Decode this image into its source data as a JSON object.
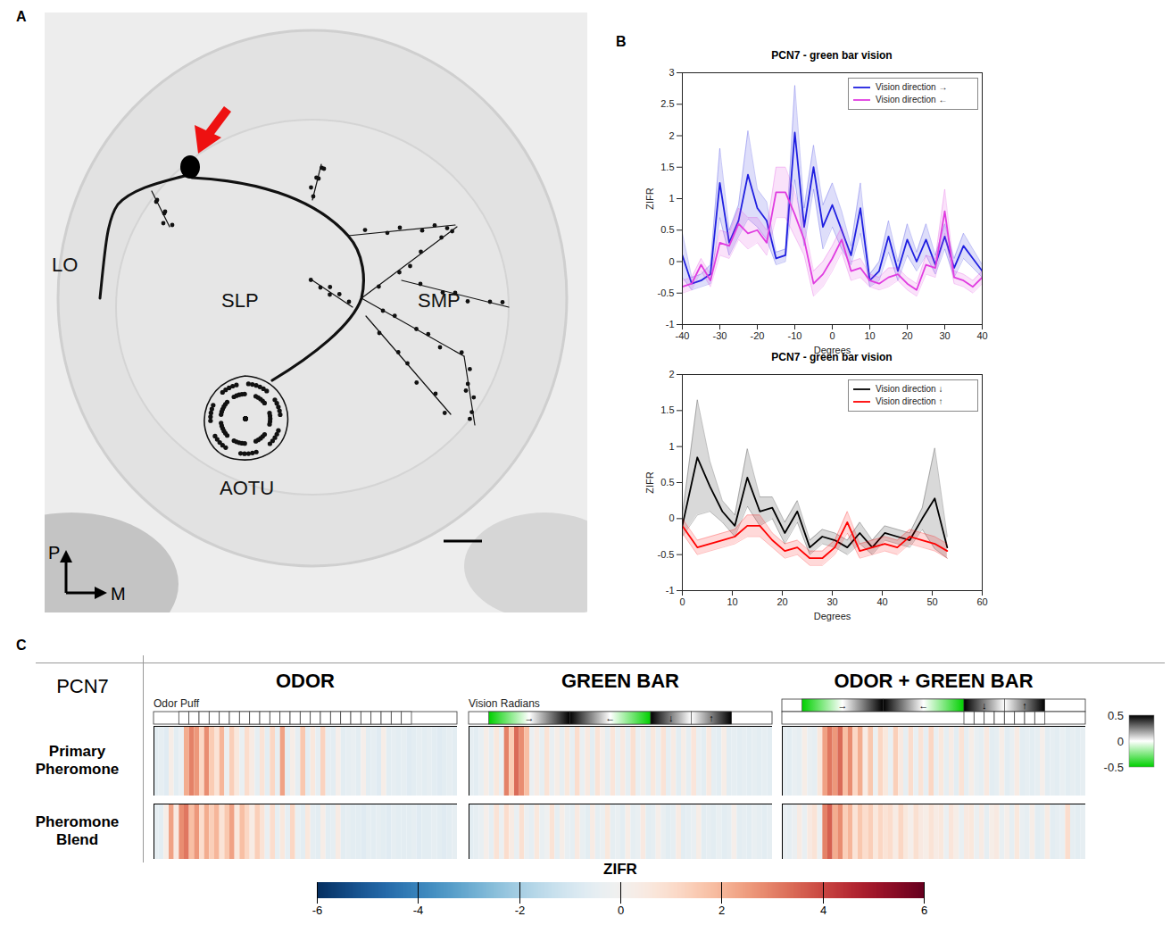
{
  "panel_letters": [
    "A",
    "B",
    "C"
  ],
  "panel_a": {
    "region_labels": [
      "LO",
      "SLP",
      "SMP",
      "AOTU"
    ],
    "orientation": {
      "up": "P",
      "right": "M"
    }
  },
  "chart_data": [
    {
      "type": "line",
      "title": "PCN7 - green bar vision",
      "xlabel": "Degrees",
      "ylabel": "ZIFR",
      "x": [
        -40,
        -37.5,
        -35,
        -32.5,
        -30,
        -27.5,
        -25,
        -22.5,
        -20,
        -17.5,
        -15,
        -12.5,
        -10,
        -7.5,
        -5,
        -2.5,
        0,
        2.5,
        5,
        7.5,
        10,
        12.5,
        15,
        17.5,
        20,
        22.5,
        25,
        27.5,
        30,
        32.5,
        35,
        37.5,
        40
      ],
      "series": [
        {
          "name": "Vision direction →",
          "color": "#1f1fe0",
          "values": [
            0.1,
            -0.35,
            -0.3,
            -0.2,
            1.25,
            0.3,
            0.65,
            1.38,
            0.85,
            0.65,
            0.05,
            0.1,
            2.05,
            0.55,
            1.5,
            0.55,
            0.9,
            0.5,
            0.1,
            0.85,
            -0.3,
            -0.15,
            0.4,
            -0.15,
            0.35,
            0,
            0.35,
            -0.05,
            0.4,
            -0.1,
            0.25,
            0.05,
            -0.15
          ],
          "error": [
            0.35,
            0.1,
            0.1,
            0.15,
            0.55,
            0.2,
            0.25,
            0.7,
            0.3,
            0.3,
            0.1,
            0.1,
            0.75,
            0.3,
            0.35,
            0.35,
            0.35,
            0.3,
            0.15,
            0.4,
            0.1,
            0.15,
            0.25,
            0.15,
            0.25,
            0.15,
            0.25,
            0.15,
            0.2,
            0.15,
            0.2,
            0.15,
            0.1
          ]
        },
        {
          "name": "Vision direction ←",
          "color": "#e03ce0",
          "values": [
            -0.4,
            -0.35,
            -0.05,
            -0.3,
            0.3,
            0.25,
            0.6,
            0.45,
            0.5,
            0.3,
            1.1,
            1.1,
            0.75,
            0.35,
            -0.35,
            -0.2,
            0.05,
            0.35,
            -0.15,
            -0.1,
            -0.3,
            -0.35,
            -0.25,
            -0.2,
            -0.35,
            -0.45,
            -0.05,
            -0.1,
            0.8,
            -0.25,
            -0.3,
            -0.4,
            -0.25
          ],
          "error": [
            0.1,
            0.1,
            0.1,
            0.1,
            0.2,
            0.2,
            0.25,
            0.25,
            0.2,
            0.2,
            0.4,
            0.4,
            0.35,
            0.25,
            0.2,
            0.2,
            0.2,
            0.2,
            0.15,
            0.15,
            0.1,
            0.1,
            0.15,
            0.1,
            0.1,
            0.1,
            0.15,
            0.15,
            0.35,
            0.1,
            0.1,
            0.1,
            0.1
          ]
        }
      ],
      "xlim": [
        -40,
        40
      ],
      "xticks": [
        -40,
        -30,
        -20,
        -10,
        0,
        10,
        20,
        30,
        40
      ],
      "ylim": [
        -1,
        3
      ],
      "yticks": [
        -1,
        -0.5,
        0,
        0.5,
        1,
        1.5,
        2,
        2.5,
        3
      ],
      "legend": "top-right"
    },
    {
      "type": "line",
      "title": "PCN7 - green bar vision",
      "xlabel": "Degrees",
      "ylabel": "ZIFR",
      "x": [
        0,
        3,
        5.5,
        8,
        10.5,
        13,
        15.5,
        18,
        20.5,
        23,
        25.5,
        28,
        30.5,
        33,
        35.5,
        38,
        40.5,
        43,
        45.5,
        48,
        50.5,
        53
      ],
      "series": [
        {
          "name": "Vision direction ↓",
          "color": "#000000",
          "values": [
            -0.1,
            0.85,
            0.45,
            0.1,
            -0.1,
            0.57,
            0.1,
            0.15,
            -0.2,
            0.1,
            -0.4,
            -0.25,
            -0.3,
            -0.4,
            -0.2,
            -0.4,
            -0.2,
            -0.25,
            -0.3,
            0,
            0.28,
            -0.4
          ],
          "error": [
            0.15,
            0.8,
            0.35,
            0.15,
            0.15,
            0.4,
            0.2,
            0.15,
            0.15,
            0.15,
            0.1,
            0.1,
            0.1,
            0.1,
            0.15,
            0.1,
            0.1,
            0.1,
            0.1,
            0.15,
            0.7,
            0.15
          ]
        },
        {
          "name": "Vision direction ↑",
          "color": "#ff0000",
          "values": [
            -0.1,
            -0.4,
            -0.35,
            -0.3,
            -0.25,
            -0.1,
            -0.1,
            -0.3,
            -0.45,
            -0.4,
            -0.55,
            -0.55,
            -0.4,
            -0.05,
            -0.45,
            -0.4,
            -0.35,
            -0.4,
            -0.25,
            -0.3,
            -0.35,
            -0.45
          ],
          "error": [
            0.1,
            0.1,
            0.1,
            0.1,
            0.1,
            0.15,
            0.15,
            0.1,
            0.1,
            0.1,
            0.1,
            0.1,
            0.1,
            0.15,
            0.1,
            0.1,
            0.1,
            0.1,
            0.1,
            0.1,
            0.1,
            0.1
          ]
        }
      ],
      "xlim": [
        0,
        60
      ],
      "xticks": [
        0,
        10,
        20,
        30,
        40,
        50,
        60
      ],
      "ylim": [
        -1,
        2
      ],
      "yticks": [
        -1,
        -0.5,
        0,
        0.5,
        1,
        1.5,
        2
      ],
      "legend": "top-right"
    }
  ],
  "panel_c": {
    "neuron": "PCN7",
    "rows": [
      "Primary Pheromone",
      "Pheromone Blend"
    ],
    "columns": [
      {
        "title": "ODOR",
        "stimulus_label": "Odor Puff",
        "odor_puffs": [
          5,
          7,
          9,
          11,
          13,
          15,
          17,
          19,
          21,
          23,
          25,
          27,
          29,
          31,
          33,
          35,
          37,
          39,
          41,
          43,
          45,
          47,
          49
        ],
        "cells": [
          [
            -0.6,
            -0.5,
            -0.7,
            0.3,
            -0.6,
            -0.4,
            2.2,
            3.0,
            2.6,
            1.2,
            2.8,
            1.5,
            0.8,
            2.0,
            -0.3,
            1.4,
            0.6,
            -0.4,
            1.0,
            0.4,
            -0.5,
            0.8,
            -0.6,
            1.2,
            -0.5,
            2.4,
            -0.6,
            0.3,
            -0.5,
            1.6,
            -0.6,
            0.6,
            -0.5,
            1.3,
            -0.5,
            -0.6,
            0.2,
            -0.6,
            -0.5,
            -0.4,
            -0.6,
            0.2,
            -0.6,
            -0.5,
            -0.7,
            0.3,
            -0.6,
            -0.5,
            -0.6,
            -0.5,
            -0.7,
            -0.6,
            -0.5,
            -0.6,
            -0.5,
            -0.6,
            -0.7,
            -0.6,
            -0.5,
            -0.6
          ],
          [
            -0.5,
            -0.6,
            0.3,
            2.4,
            0.5,
            2.8,
            3.2,
            1.8,
            2.6,
            1.0,
            2.2,
            1.4,
            2.0,
            0.8,
            1.6,
            2.4,
            0.6,
            1.8,
            1.2,
            0.4,
            1.4,
            0.8,
            -0.4,
            1.0,
            -0.5,
            0.6,
            -0.5,
            1.2,
            -0.4,
            -0.6,
            0.6,
            -0.5,
            -0.6,
            0.3,
            -0.6,
            -0.5,
            0.4,
            -0.6,
            -0.5,
            -0.6,
            -0.6,
            -0.7,
            -0.5,
            -0.6,
            -0.5,
            -0.6,
            -0.7,
            -0.5,
            -0.6,
            -0.6,
            -0.6,
            -0.5,
            -0.7,
            -0.6,
            -0.6,
            -0.5,
            -0.6,
            -0.7,
            -0.6,
            -0.5
          ]
        ]
      },
      {
        "title": "GREEN BAR",
        "stimulus_label": "Vision Radians",
        "vision": [
          {
            "label": "→",
            "start": 4,
            "end": 20,
            "from": -0.5,
            "to": 0.5
          },
          {
            "label": "←",
            "start": 20,
            "end": 36,
            "from": 0.5,
            "to": -0.5
          },
          {
            "label": "↓",
            "start": 36,
            "end": 44,
            "from": 0.5,
            "to": 0
          },
          {
            "label": "↑",
            "start": 44,
            "end": 52,
            "from": 0,
            "to": 0.5
          }
        ],
        "cells": [
          [
            -0.5,
            -0.6,
            -0.4,
            0.3,
            -0.5,
            0.6,
            -0.4,
            3.0,
            1.5,
            3.4,
            2.8,
            1.8,
            -0.3,
            0.4,
            -0.5,
            0.8,
            -0.4,
            0.3,
            -0.5,
            0.6,
            -0.5,
            1.0,
            -0.4,
            0.5,
            -0.6,
            0.8,
            0.2,
            -0.5,
            0.7,
            -0.4,
            0.5,
            -0.5,
            0.9,
            -0.4,
            0.3,
            -0.5,
            0.6,
            -0.4,
            0.8,
            -0.5,
            0.4,
            -0.6,
            0.3,
            -0.5,
            0.7,
            -0.4,
            -0.6,
            0.5,
            -0.5,
            -0.6,
            0.3,
            -0.6,
            -0.5,
            -0.6,
            -0.5,
            -0.6,
            -0.5,
            -0.6,
            -0.5,
            -0.6
          ],
          [
            -0.6,
            -0.5,
            -0.4,
            0.2,
            -0.5,
            0.8,
            -0.3,
            1.0,
            0.4,
            -0.4,
            0.9,
            -0.3,
            -0.5,
            0.6,
            -0.4,
            -0.2,
            0.8,
            -0.5,
            0.3,
            -0.4,
            -0.5,
            0.5,
            -0.4,
            -0.6,
            0.4,
            -0.5,
            -0.3,
            0.6,
            -0.5,
            -0.4,
            -0.6,
            0.3,
            -0.5,
            -0.4,
            0.5,
            -0.6,
            -0.5,
            0.2,
            -0.4,
            -0.6,
            -0.5,
            0.4,
            -0.6,
            -0.5,
            -0.4,
            0.3,
            -0.6,
            -0.5,
            -0.6,
            -0.4,
            -0.6,
            -0.5,
            0.2,
            -0.6,
            -0.5,
            -0.6,
            -0.4,
            -0.5,
            -0.6,
            -0.5
          ]
        ]
      },
      {
        "title": "ODOR + GREEN BAR",
        "vision": [
          {
            "label": "→",
            "start": 4,
            "end": 20,
            "from": -0.5,
            "to": 0.5
          },
          {
            "label": "←",
            "start": 20,
            "end": 36,
            "from": 0.5,
            "to": -0.5
          },
          {
            "label": "↓",
            "start": 36,
            "end": 44,
            "from": 0.5,
            "to": 0
          },
          {
            "label": "↑",
            "start": 44,
            "end": 52,
            "from": 0,
            "to": 0.5
          }
        ],
        "odor_puffs": [
          36,
          38,
          40,
          42,
          44,
          46,
          48,
          50
        ],
        "cells": [
          [
            -0.5,
            -0.6,
            -0.4,
            -0.5,
            0.3,
            -0.4,
            -0.5,
            0.6,
            2.4,
            3.2,
            2.6,
            3.4,
            1.8,
            2.8,
            1.2,
            2.2,
            0.4,
            1.6,
            -0.3,
            1.2,
            0.6,
            -0.4,
            1.4,
            0.5,
            -0.5,
            1.0,
            -0.4,
            0.8,
            -0.5,
            1.2,
            -0.4,
            0.6,
            -0.5,
            0.4,
            -0.6,
            0.8,
            -0.5,
            0.3,
            -0.4,
            -0.5,
            0.5,
            -0.6,
            -0.5,
            0.3,
            -0.6,
            -0.4,
            0.4,
            -0.6,
            -0.5,
            -0.6,
            -0.5,
            0.2,
            -0.6,
            -0.5,
            -0.6,
            -0.4,
            -0.6,
            -0.5,
            -0.6,
            -0.5
          ],
          [
            -0.4,
            -0.5,
            -0.3,
            0.4,
            -0.4,
            0.5,
            0.8,
            -0.3,
            3.0,
            3.6,
            2.2,
            2.8,
            1.4,
            2.0,
            0.8,
            1.6,
            1.0,
            1.4,
            0.6,
            1.2,
            0.8,
            1.0,
            0.4,
            1.2,
            0.6,
            0.2,
            0.9,
            0.5,
            0.3,
            0.8,
            0.4,
            0.6,
            -0.3,
            0.7,
            0.3,
            -0.4,
            0.5,
            0.6,
            -0.3,
            0.4,
            -0.5,
            0.3,
            0.5,
            -0.4,
            0.2,
            -0.5,
            0.6,
            -0.4,
            -0.5,
            0.3,
            -0.6,
            -0.5,
            0.4,
            -0.6,
            -0.5,
            -0.4,
            1.0,
            -0.5,
            -0.6,
            -0.5
          ]
        ]
      }
    ],
    "color_bar": {
      "label": "ZIFR",
      "lim": [
        -6,
        6
      ],
      "ticks": [
        -6,
        -4,
        -2,
        0,
        2,
        4,
        6
      ]
    },
    "vision_color_bar": {
      "lim": [
        -0.5,
        0.5
      ],
      "ticks": [
        0.5,
        0,
        -0.5
      ]
    }
  }
}
